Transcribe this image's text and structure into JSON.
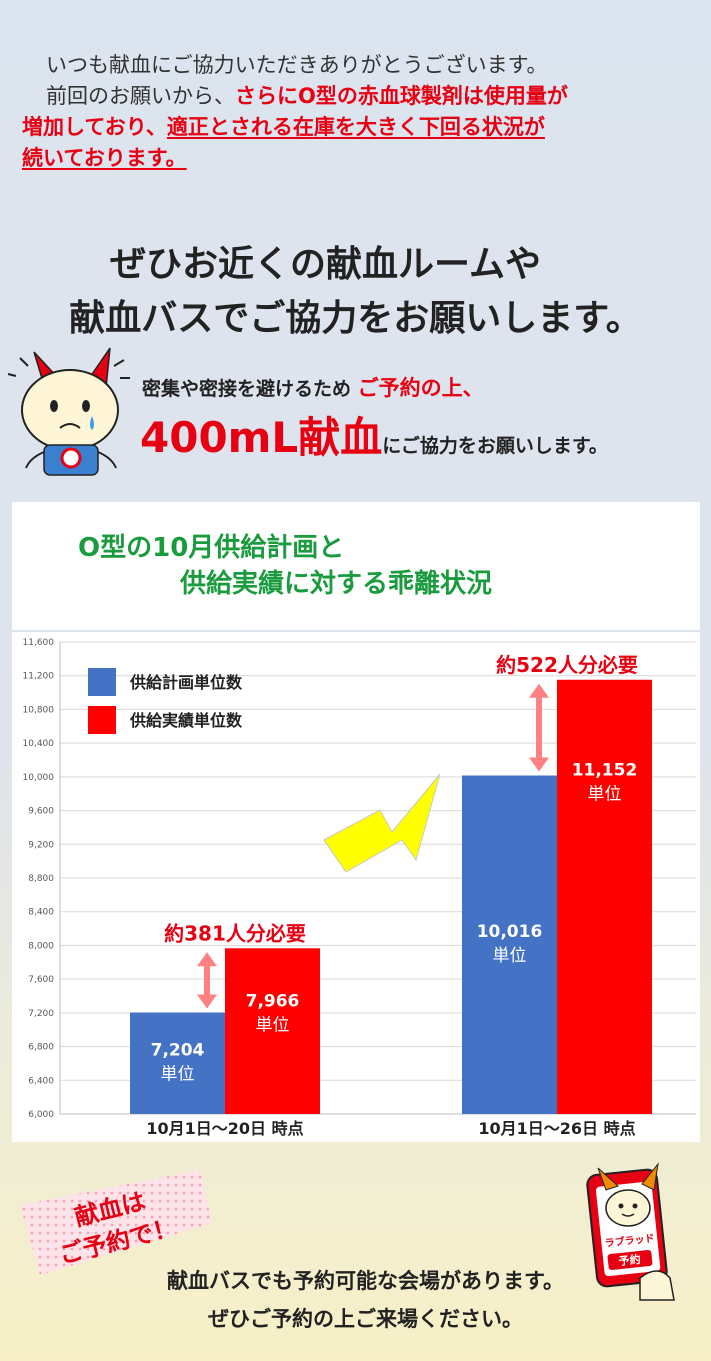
{
  "intro": {
    "line1": "いつも献血にご協力いただきありがとうございます。",
    "line2_plain": "前回のお願いから、",
    "line2_red": "さらにO型の赤血球製剤は使用量が",
    "line3_red": "増加しており、",
    "line3_red_ul": "適正とされる在庫を大きく下回る状況が",
    "line4_red_ul": "続いております。"
  },
  "headline": {
    "line1": "ぜひお近くの献血ルームや",
    "line2": "献血バスでご協力をお願いします。"
  },
  "notice": {
    "prefix": "密集や密接を避けるため",
    "red": "ご予約の上、",
    "big": "400mL献血",
    "suffix": "にご協力をお願いします。"
  },
  "chart_title": {
    "line1": "O型の10月供給計画と",
    "line2": "供給実績に対する乖離状況"
  },
  "chart_data": {
    "type": "bar",
    "categories": [
      "10月1日～20日 時点",
      "10月1日～26日 時点"
    ],
    "series": [
      {
        "name": "供給計画単位数",
        "color": "#4472c4",
        "values": [
          7204,
          10016
        ],
        "labels": [
          "7,204",
          "10,016"
        ]
      },
      {
        "name": "供給実績単位数",
        "color": "#ff0000",
        "values": [
          7966,
          11152
        ],
        "labels": [
          "7,966",
          "11,152"
        ]
      }
    ],
    "unit_label": "単位",
    "gap_labels": [
      "約381人分必要",
      "約522人分必要"
    ],
    "ylim": [
      6000,
      11600
    ],
    "yticks": [
      6000,
      6400,
      6800,
      7200,
      7600,
      8000,
      8400,
      8800,
      9200,
      9600,
      10000,
      10400,
      10800,
      11200,
      11600
    ],
    "ytick_labels": [
      "6,000",
      "6,400",
      "6,800",
      "7,200",
      "7,600",
      "8,000",
      "8,400",
      "8,800",
      "9,200",
      "9,600",
      "10,000",
      "10,400",
      "10,800",
      "11,200",
      "11,600"
    ],
    "grid": true,
    "legend": "top-left"
  },
  "stamp": {
    "line1": "献血は",
    "line2": "ご予約で！"
  },
  "phone": {
    "brand": "ラブラッド",
    "label": "予約"
  },
  "footer": {
    "line1": "献血バスでも予約可能な会場があります。",
    "line2": "ぜひご予約の上ご来場ください。"
  },
  "colors": {
    "accent_red": "#e60012",
    "title_green": "#1a9c3e",
    "arrow_yellow": "#ffff00",
    "gap_arrow": "#ff8080"
  }
}
